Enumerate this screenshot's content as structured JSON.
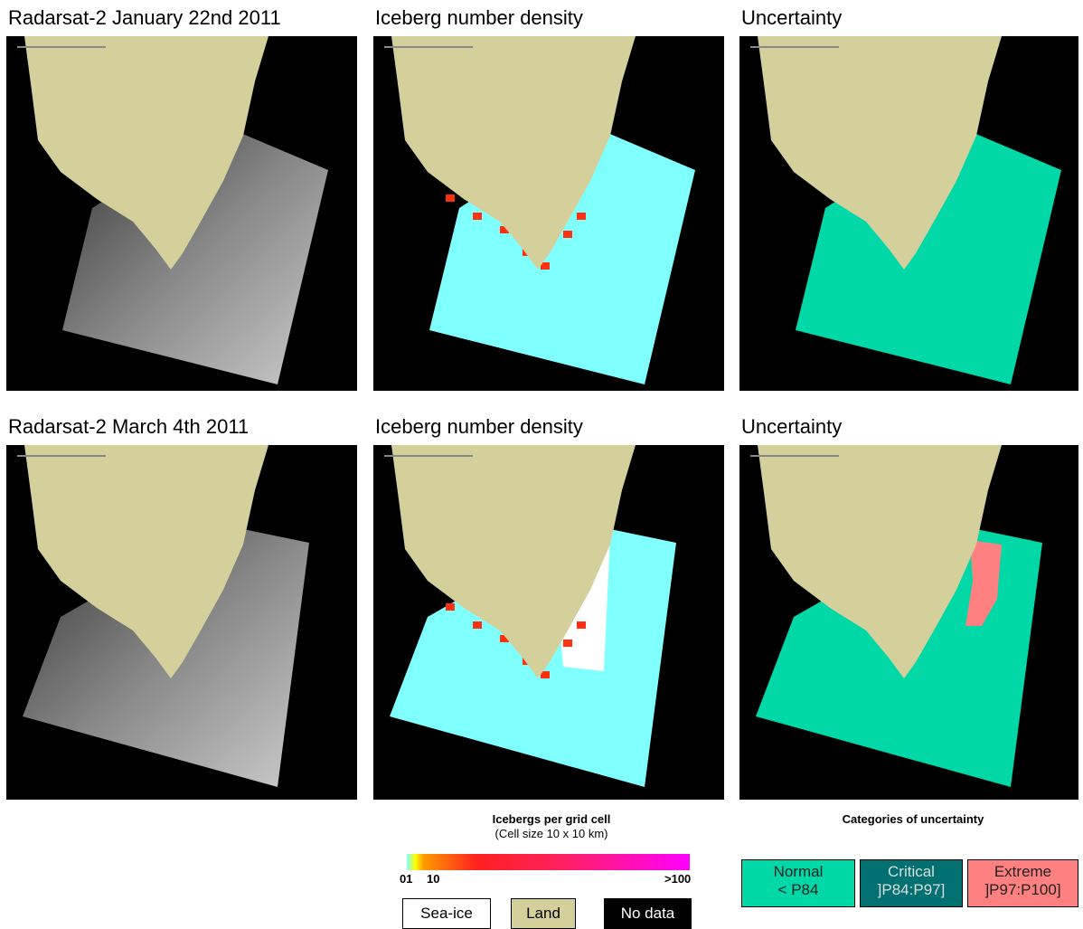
{
  "panels": [
    {
      "title": "Radarsat-2 January 22nd 2011"
    },
    {
      "title": "Iceberg number density"
    },
    {
      "title": "Uncertainty"
    },
    {
      "title": "Radarsat-2 March 4th 2011"
    },
    {
      "title": "Iceberg number density"
    },
    {
      "title": "Uncertainty"
    }
  ],
  "density_legend": {
    "title": "Icebergs per grid cell",
    "subtitle": "(Cell size 10 x 10 km)",
    "ticks": [
      "01",
      "10",
      ">100"
    ],
    "classes": [
      "Sea-ice",
      "Land",
      "No data"
    ]
  },
  "uncertainty_legend": {
    "title": "Categories of uncertainty",
    "categories": [
      {
        "name": "Normal",
        "range": "< P84"
      },
      {
        "name": "Critical",
        "range": "]P84:P97]"
      },
      {
        "name": "Extreme",
        "range": "]P97:P100]"
      }
    ]
  }
}
